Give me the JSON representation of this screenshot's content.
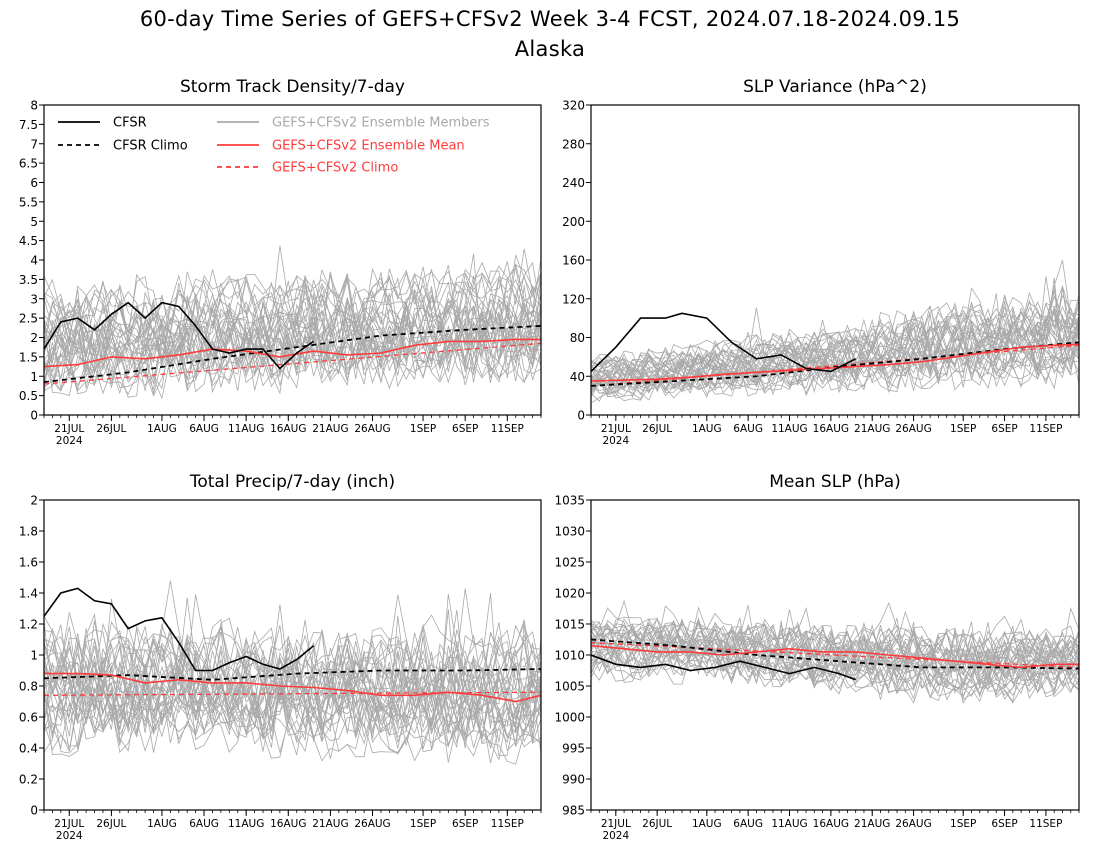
{
  "page": {
    "title_line1": "60-day Time Series of GEFS+CFSv2 Week 3-4 FCST, 2024.07.18-2024.09.15",
    "title_line2": "Alaska"
  },
  "colors": {
    "members": "#a9a9a9",
    "ens_mean": "#ff3b3b",
    "ens_climo": "#ff3b3b",
    "cfsr": "#000000",
    "cfsr_climo": "#000000",
    "legend_members_text": "#a9a9a9",
    "legend_red_text": "#ff3b3b"
  },
  "legend": {
    "cfsr": "CFSR",
    "cfsr_climo": "CFSR Climo",
    "members": "GEFS+CFSv2 Ensemble Members",
    "ens_mean": "GEFS+CFSv2 Ensemble Mean",
    "ens_climo": "GEFS+CFSv2 Climo"
  },
  "x_axis": {
    "start_date": "2024-07-18",
    "end_date": "2024-09-15",
    "tick_labels": [
      "21JUL",
      "26JUL",
      "1AUG",
      "6AUG",
      "11AUG",
      "16AUG",
      "21AUG",
      "26AUG",
      "1SEP",
      "6SEP",
      "11SEP"
    ],
    "tick_dates": [
      "2024-07-21",
      "2024-07-26",
      "2024-08-01",
      "2024-08-06",
      "2024-08-11",
      "2024-08-16",
      "2024-08-21",
      "2024-08-26",
      "2024-09-01",
      "2024-09-06",
      "2024-09-11"
    ],
    "year_label": "2024"
  },
  "chart_data": [
    {
      "type": "line",
      "title": "Storm Track Density/7-day",
      "ylim": [
        0,
        8
      ],
      "y_ticks": [
        "0",
        "0.5",
        "1",
        "1.5",
        "2",
        "2.5",
        "3",
        "3.5",
        "4",
        "4.5",
        "5",
        "5.5",
        "6",
        "6.5",
        "7",
        "7.5",
        "8"
      ],
      "members_envelope": {
        "dates": [
          "2024-07-18",
          "2024-08-01",
          "2024-08-16",
          "2024-08-31",
          "2024-09-15"
        ],
        "low": [
          0.5,
          0.6,
          0.7,
          0.8,
          0.9
        ],
        "high": [
          3.2,
          3.4,
          3.6,
          3.7,
          3.8
        ]
      },
      "series": [
        {
          "name": "CFSR",
          "x": [
            "2024-07-18",
            "2024-07-20",
            "2024-07-22",
            "2024-07-24",
            "2024-07-26",
            "2024-07-28",
            "2024-07-30",
            "2024-08-01",
            "2024-08-03",
            "2024-08-05",
            "2024-08-07",
            "2024-08-09",
            "2024-08-11",
            "2024-08-13",
            "2024-08-15",
            "2024-08-17",
            "2024-08-19"
          ],
          "y": [
            1.7,
            2.4,
            2.5,
            2.2,
            2.6,
            2.9,
            2.5,
            2.9,
            2.8,
            2.3,
            1.7,
            1.6,
            1.7,
            1.7,
            1.2,
            1.6,
            1.9
          ]
        },
        {
          "name": "CFSR Climo",
          "x": [
            "2024-07-18",
            "2024-07-28",
            "2024-08-07",
            "2024-08-17",
            "2024-08-27",
            "2024-09-06",
            "2024-09-15"
          ],
          "y": [
            0.85,
            1.1,
            1.45,
            1.75,
            2.05,
            2.2,
            2.3
          ]
        },
        {
          "name": "GEFS+CFSv2 Ensemble Mean",
          "x": [
            "2024-07-18",
            "2024-07-22",
            "2024-07-26",
            "2024-07-30",
            "2024-08-03",
            "2024-08-07",
            "2024-08-11",
            "2024-08-15",
            "2024-08-19",
            "2024-08-23",
            "2024-08-27",
            "2024-08-31",
            "2024-09-04",
            "2024-09-08",
            "2024-09-12",
            "2024-09-15"
          ],
          "y": [
            1.25,
            1.3,
            1.5,
            1.45,
            1.55,
            1.7,
            1.65,
            1.5,
            1.65,
            1.55,
            1.6,
            1.8,
            1.9,
            1.9,
            1.95,
            1.95
          ]
        },
        {
          "name": "GEFS+CFSv2 Climo",
          "x": [
            "2024-07-18",
            "2024-09-15"
          ],
          "y": [
            0.8,
            1.85
          ]
        }
      ]
    },
    {
      "type": "line",
      "title": "SLP Variance (hPa^2)",
      "ylim": [
        0,
        320
      ],
      "y_ticks": [
        "0",
        "40",
        "80",
        "120",
        "160",
        "200",
        "240",
        "280",
        "320"
      ],
      "members_envelope": {
        "dates": [
          "2024-07-18",
          "2024-08-01",
          "2024-08-16",
          "2024-08-31",
          "2024-09-15"
        ],
        "low": [
          15,
          20,
          25,
          30,
          35
        ],
        "high": [
          60,
          75,
          90,
          115,
          130
        ]
      },
      "series": [
        {
          "name": "CFSR",
          "x": [
            "2024-07-18",
            "2024-07-21",
            "2024-07-24",
            "2024-07-27",
            "2024-07-29",
            "2024-08-01",
            "2024-08-04",
            "2024-08-07",
            "2024-08-10",
            "2024-08-13",
            "2024-08-16",
            "2024-08-19"
          ],
          "y": [
            45,
            70,
            100,
            100,
            105,
            100,
            75,
            58,
            62,
            48,
            45,
            58
          ]
        },
        {
          "name": "CFSR Climo",
          "x": [
            "2024-07-18",
            "2024-07-28",
            "2024-08-07",
            "2024-08-17",
            "2024-08-27",
            "2024-09-06",
            "2024-09-15"
          ],
          "y": [
            30,
            35,
            40,
            50,
            58,
            68,
            75
          ]
        },
        {
          "name": "GEFS+CFSv2 Ensemble Mean",
          "x": [
            "2024-07-18",
            "2024-07-22",
            "2024-07-26",
            "2024-07-30",
            "2024-08-03",
            "2024-08-07",
            "2024-08-11",
            "2024-08-15",
            "2024-08-19",
            "2024-08-23",
            "2024-08-27",
            "2024-08-31",
            "2024-09-04",
            "2024-09-08",
            "2024-09-12",
            "2024-09-15"
          ],
          "y": [
            35,
            36,
            37,
            39,
            42,
            44,
            46,
            48,
            50,
            52,
            55,
            60,
            65,
            70,
            72,
            73
          ]
        },
        {
          "name": "GEFS+CFSv2 Climo",
          "x": [
            "2024-07-18",
            "2024-09-15"
          ],
          "y": [
            30,
            72
          ]
        }
      ]
    },
    {
      "type": "line",
      "title": "Total Precip/7-day (inch)",
      "ylim": [
        0,
        2
      ],
      "y_ticks": [
        "0",
        "0.2",
        "0.4",
        "0.6",
        "0.8",
        "1",
        "1.2",
        "1.4",
        "1.6",
        "1.8",
        "2"
      ],
      "members_envelope": {
        "dates": [
          "2024-07-18",
          "2024-08-01",
          "2024-08-16",
          "2024-08-31",
          "2024-09-15"
        ],
        "low": [
          0.35,
          0.4,
          0.38,
          0.35,
          0.33
        ],
        "high": [
          1.25,
          1.2,
          1.18,
          1.15,
          1.15
        ]
      },
      "series": [
        {
          "name": "CFSR",
          "x": [
            "2024-07-18",
            "2024-07-20",
            "2024-07-22",
            "2024-07-24",
            "2024-07-26",
            "2024-07-28",
            "2024-07-30",
            "2024-08-01",
            "2024-08-03",
            "2024-08-05",
            "2024-08-07",
            "2024-08-09",
            "2024-08-11",
            "2024-08-13",
            "2024-08-15",
            "2024-08-17",
            "2024-08-19"
          ],
          "y": [
            1.25,
            1.4,
            1.43,
            1.35,
            1.33,
            1.17,
            1.22,
            1.24,
            1.08,
            0.9,
            0.9,
            0.95,
            0.99,
            0.94,
            0.91,
            0.97,
            1.06
          ]
        },
        {
          "name": "CFSR Climo",
          "x": [
            "2024-07-18",
            "2024-07-28",
            "2024-08-07",
            "2024-08-17",
            "2024-08-27",
            "2024-09-06",
            "2024-09-15"
          ],
          "y": [
            0.85,
            0.87,
            0.84,
            0.88,
            0.9,
            0.9,
            0.91
          ]
        },
        {
          "name": "GEFS+CFSv2 Ensemble Mean",
          "x": [
            "2024-07-18",
            "2024-07-22",
            "2024-07-26",
            "2024-07-30",
            "2024-08-03",
            "2024-08-07",
            "2024-08-11",
            "2024-08-15",
            "2024-08-19",
            "2024-08-23",
            "2024-08-27",
            "2024-08-31",
            "2024-09-04",
            "2024-09-08",
            "2024-09-12",
            "2024-09-15"
          ],
          "y": [
            0.88,
            0.88,
            0.87,
            0.82,
            0.84,
            0.82,
            0.82,
            0.8,
            0.79,
            0.77,
            0.74,
            0.74,
            0.76,
            0.74,
            0.7,
            0.74
          ]
        },
        {
          "name": "GEFS+CFSv2 Climo",
          "x": [
            "2024-07-18",
            "2024-09-15"
          ],
          "y": [
            0.74,
            0.76
          ]
        }
      ]
    },
    {
      "type": "line",
      "title": "Mean SLP (hPa)",
      "ylim": [
        985,
        1035
      ],
      "y_ticks": [
        "985",
        "990",
        "995",
        "1000",
        "1005",
        "1010",
        "1015",
        "1020",
        "1025",
        "1030",
        "1035"
      ],
      "members_envelope": {
        "dates": [
          "2024-07-18",
          "2024-08-01",
          "2024-08-16",
          "2024-08-31",
          "2024-09-15"
        ],
        "low": [
          1006,
          1005.5,
          1004,
          1002,
          1003
        ],
        "high": [
          1016,
          1015.5,
          1014.5,
          1014,
          1014
        ]
      },
      "series": [
        {
          "name": "CFSR",
          "x": [
            "2024-07-18",
            "2024-07-21",
            "2024-07-24",
            "2024-07-27",
            "2024-07-30",
            "2024-08-02",
            "2024-08-05",
            "2024-08-08",
            "2024-08-11",
            "2024-08-14",
            "2024-08-17",
            "2024-08-19"
          ],
          "y": [
            1010,
            1008.5,
            1008,
            1008.5,
            1007.5,
            1008,
            1009,
            1008,
            1007,
            1008,
            1007,
            1006
          ]
        },
        {
          "name": "CFSR Climo",
          "x": [
            "2024-07-18",
            "2024-07-28",
            "2024-08-07",
            "2024-08-17",
            "2024-08-27",
            "2024-09-06",
            "2024-09-15"
          ],
          "y": [
            1012.5,
            1011.5,
            1010,
            1009,
            1008,
            1008,
            1007.8
          ]
        },
        {
          "name": "GEFS+CFSv2 Ensemble Mean",
          "x": [
            "2024-07-18",
            "2024-07-22",
            "2024-07-26",
            "2024-07-30",
            "2024-08-03",
            "2024-08-07",
            "2024-08-11",
            "2024-08-15",
            "2024-08-19",
            "2024-08-23",
            "2024-08-27",
            "2024-08-31",
            "2024-09-04",
            "2024-09-08",
            "2024-09-12",
            "2024-09-15"
          ],
          "y": [
            1011.5,
            1011,
            1010.5,
            1010.5,
            1010,
            1010.5,
            1011,
            1010.5,
            1010.5,
            1010,
            1009.5,
            1009,
            1008.5,
            1008,
            1008.5,
            1008.5
          ]
        },
        {
          "name": "GEFS+CFSv2 Climo",
          "x": [
            "2024-07-18",
            "2024-09-15"
          ],
          "y": [
            1012,
            1008
          ]
        }
      ]
    }
  ]
}
